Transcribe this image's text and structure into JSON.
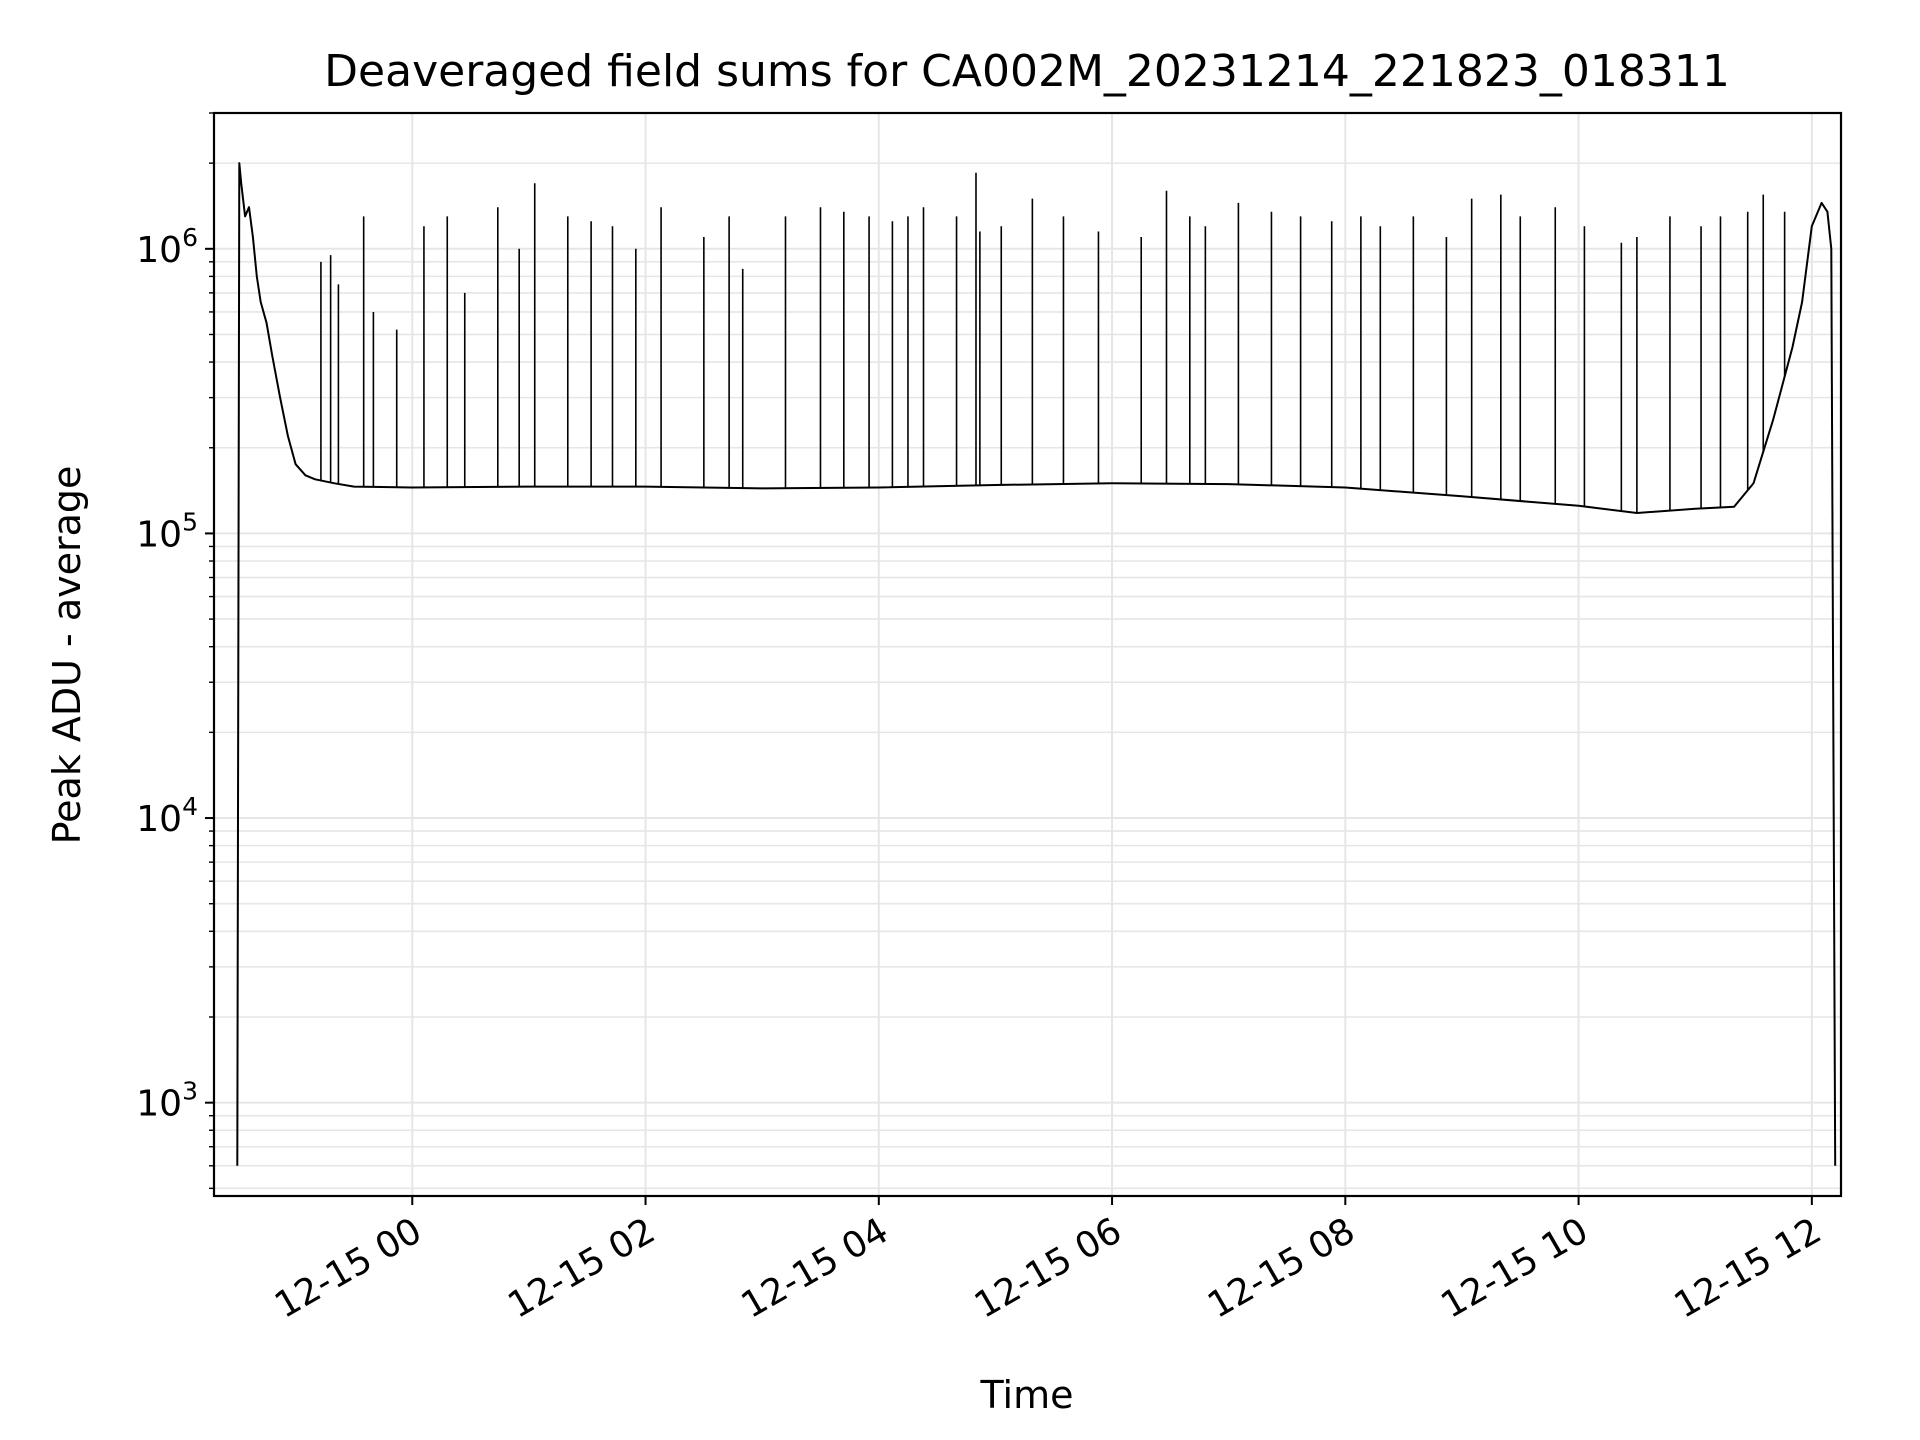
{
  "chart_data": {
    "type": "line",
    "title": "Deaveraged field sums for CA002M_20231214_221823_018311",
    "xlabel": "Time",
    "ylabel": "Peak ADU - average",
    "y_scale": "log",
    "grid": true,
    "line_color": "#000000",
    "grid_color": "#e6e6e6",
    "xlim": [
      "2023-12-14 22:18",
      "2023-12-15 12:15"
    ],
    "ylim": [
      470,
      3000000
    ],
    "x_ticks": [
      {
        "t": "2023-12-15 00:00",
        "label": "12-15 00"
      },
      {
        "t": "2023-12-15 02:00",
        "label": "12-15 02"
      },
      {
        "t": "2023-12-15 04:00",
        "label": "12-15 04"
      },
      {
        "t": "2023-12-15 06:00",
        "label": "12-15 06"
      },
      {
        "t": "2023-12-15 08:00",
        "label": "12-15 08"
      },
      {
        "t": "2023-12-15 10:00",
        "label": "12-15 10"
      },
      {
        "t": "2023-12-15 12:00",
        "label": "12-15 12"
      }
    ],
    "y_ticks": [
      {
        "value": 1000,
        "base": "10",
        "exp": "3"
      },
      {
        "value": 10000,
        "base": "10",
        "exp": "4"
      },
      {
        "value": 100000,
        "base": "10",
        "exp": "5"
      },
      {
        "value": 1000000,
        "base": "10",
        "exp": "6"
      }
    ],
    "series": [
      {
        "x": [
          "2023-12-14 22:30",
          "2023-12-14 22:31",
          "2023-12-14 22:32",
          "2023-12-14 22:34",
          "2023-12-14 22:36",
          "2023-12-14 22:38",
          "2023-12-14 22:40",
          "2023-12-14 22:42",
          "2023-12-14 22:45",
          "2023-12-14 22:48",
          "2023-12-14 22:52",
          "2023-12-14 22:56",
          "2023-12-14 23:00",
          "2023-12-14 23:05",
          "2023-12-14 23:10",
          "2023-12-14 23:20",
          "2023-12-14 23:30",
          "2023-12-15 00:00",
          "2023-12-15 01:00",
          "2023-12-15 02:00",
          "2023-12-15 03:00",
          "2023-12-15 04:00",
          "2023-12-15 05:00",
          "2023-12-15 06:00",
          "2023-12-15 07:00",
          "2023-12-15 08:00",
          "2023-12-15 09:00",
          "2023-12-15 10:00",
          "2023-12-15 10:30",
          "2023-12-15 11:00",
          "2023-12-15 11:20",
          "2023-12-15 11:30",
          "2023-12-15 11:40",
          "2023-12-15 11:50",
          "2023-12-15 11:55",
          "2023-12-15 12:00",
          "2023-12-15 12:05",
          "2023-12-15 12:08",
          "2023-12-15 12:10",
          "2023-12-15 12:12"
        ],
        "y": [
          600,
          2000000,
          1700000,
          1300000,
          1400000,
          1100000,
          800000,
          650000,
          550000,
          420000,
          300000,
          220000,
          175000,
          160000,
          155000,
          150000,
          146000,
          145000,
          146000,
          146000,
          144000,
          145000,
          148000,
          150000,
          149000,
          145000,
          135000,
          125000,
          118000,
          122000,
          124000,
          150000,
          250000,
          450000,
          650000,
          1200000,
          1450000,
          1350000,
          1000000,
          600
        ]
      }
    ],
    "spikes": {
      "x": [
        "2023-12-14 23:13",
        "2023-12-14 23:18",
        "2023-12-14 23:22",
        "2023-12-14 23:35",
        "2023-12-14 23:40",
        "2023-12-14 23:52",
        "2023-12-15 00:06",
        "2023-12-15 00:18",
        "2023-12-15 00:27",
        "2023-12-15 00:44",
        "2023-12-15 00:55",
        "2023-12-15 01:03",
        "2023-12-15 01:20",
        "2023-12-15 01:32",
        "2023-12-15 01:43",
        "2023-12-15 01:55",
        "2023-12-15 02:08",
        "2023-12-15 02:30",
        "2023-12-15 02:43",
        "2023-12-15 02:50",
        "2023-12-15 03:12",
        "2023-12-15 03:30",
        "2023-12-15 03:42",
        "2023-12-15 03:55",
        "2023-12-15 04:07",
        "2023-12-15 04:15",
        "2023-12-15 04:23",
        "2023-12-15 04:40",
        "2023-12-15 04:50",
        "2023-12-15 04:52",
        "2023-12-15 05:03",
        "2023-12-15 05:19",
        "2023-12-15 05:35",
        "2023-12-15 05:53",
        "2023-12-15 06:15",
        "2023-12-15 06:28",
        "2023-12-15 06:40",
        "2023-12-15 06:48",
        "2023-12-15 07:05",
        "2023-12-15 07:22",
        "2023-12-15 07:37",
        "2023-12-15 07:53",
        "2023-12-15 08:08",
        "2023-12-15 08:18",
        "2023-12-15 08:35",
        "2023-12-15 08:52",
        "2023-12-15 09:05",
        "2023-12-15 09:20",
        "2023-12-15 09:30",
        "2023-12-15 09:48",
        "2023-12-15 10:03",
        "2023-12-15 10:22",
        "2023-12-15 10:30",
        "2023-12-15 10:47",
        "2023-12-15 11:03",
        "2023-12-15 11:13",
        "2023-12-15 11:27",
        "2023-12-15 11:35",
        "2023-12-15 11:46"
      ],
      "y": [
        900000,
        950000,
        750000,
        1300000,
        600000,
        520000,
        1200000,
        1300000,
        700000,
        1400000,
        1000000,
        1700000,
        1300000,
        1250000,
        1200000,
        1000000,
        1400000,
        1100000,
        1300000,
        850000,
        1300000,
        1400000,
        1350000,
        1300000,
        1250000,
        1300000,
        1400000,
        1300000,
        1850000,
        1150000,
        1200000,
        1500000,
        1300000,
        1150000,
        1100000,
        1600000,
        1300000,
        1200000,
        1450000,
        1350000,
        1300000,
        1250000,
        1300000,
        1200000,
        1300000,
        1100000,
        1500000,
        1550000,
        1300000,
        1400000,
        1200000,
        1050000,
        1100000,
        1300000,
        1200000,
        1300000,
        1350000,
        1550000,
        1350000
      ]
    }
  }
}
